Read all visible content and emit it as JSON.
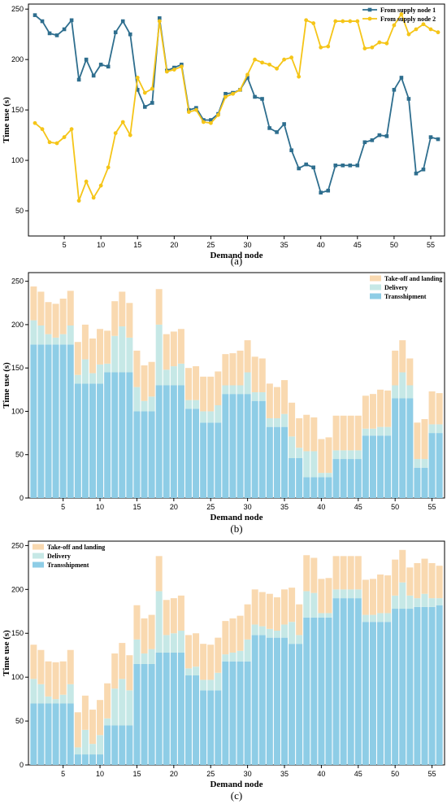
{
  "colors": {
    "series1": "#2e6e8e",
    "series2": "#f5c518",
    "transshipment": "#8ecde6",
    "delivery": "#c6e8e6",
    "takeoff": "#f9d9b0"
  },
  "chart_data": [
    {
      "type": "line",
      "caption": "(a)",
      "xlabel": "Demand node",
      "ylabel": "Time use (s)",
      "xlim": [
        1,
        56
      ],
      "ylim": [
        25,
        255
      ],
      "xticks": [
        5,
        10,
        15,
        20,
        25,
        30,
        35,
        40,
        45,
        50,
        55
      ],
      "yticks": [
        50,
        100,
        150,
        200,
        250
      ],
      "legend_position": "top-right",
      "x": [
        1,
        2,
        3,
        4,
        5,
        6,
        7,
        8,
        9,
        10,
        11,
        12,
        13,
        14,
        15,
        16,
        17,
        18,
        19,
        20,
        21,
        22,
        23,
        24,
        25,
        26,
        27,
        28,
        29,
        30,
        31,
        32,
        33,
        34,
        35,
        36,
        37,
        38,
        39,
        40,
        41,
        42,
        43,
        44,
        45,
        46,
        47,
        48,
        49,
        50,
        51,
        52,
        53,
        54,
        55,
        56
      ],
      "series": [
        {
          "name": "From supply node 1",
          "marker": "square",
          "values": [
            244,
            238,
            226,
            224,
            230,
            239,
            180,
            200,
            184,
            195,
            193,
            227,
            238,
            225,
            170,
            153,
            157,
            241,
            189,
            192,
            195,
            150,
            152,
            140,
            140,
            146,
            166,
            167,
            170,
            182,
            163,
            161,
            132,
            128,
            136,
            110,
            92,
            96,
            93,
            68,
            70,
            95,
            95,
            95,
            95,
            118,
            120,
            125,
            124,
            170,
            182,
            161,
            87,
            91,
            123,
            121
          ]
        },
        {
          "name": "From supply node 2",
          "marker": "circle",
          "values": [
            137,
            131,
            118,
            117,
            123,
            131,
            60,
            79,
            63,
            75,
            93,
            127,
            138,
            125,
            182,
            167,
            171,
            238,
            188,
            190,
            193,
            148,
            150,
            138,
            137,
            145,
            163,
            166,
            170,
            185,
            200,
            197,
            195,
            191,
            200,
            202,
            183,
            239,
            236,
            212,
            213,
            238,
            238,
            238,
            238,
            211,
            212,
            217,
            216,
            234,
            245,
            225,
            230,
            235,
            230,
            227
          ]
        }
      ]
    },
    {
      "type": "bar",
      "stacked": true,
      "caption": "(b)",
      "xlabel": "Demand node",
      "ylabel": "Time use (s)",
      "ylim": [
        0,
        260
      ],
      "xticks": [
        5,
        10,
        15,
        20,
        25,
        30,
        35,
        40,
        45,
        50,
        55
      ],
      "yticks": [
        0,
        50,
        100,
        150,
        200,
        250
      ],
      "legend_position": "top-right",
      "categories": [
        1,
        2,
        3,
        4,
        5,
        6,
        7,
        8,
        9,
        10,
        11,
        12,
        13,
        14,
        15,
        16,
        17,
        18,
        19,
        20,
        21,
        22,
        23,
        24,
        25,
        26,
        27,
        28,
        29,
        30,
        31,
        32,
        33,
        34,
        35,
        36,
        37,
        38,
        39,
        40,
        41,
        42,
        43,
        44,
        45,
        46,
        47,
        48,
        49,
        50,
        51,
        52,
        53,
        54,
        55,
        56
      ],
      "series": [
        {
          "name": "Transshipment",
          "values": [
            177,
            177,
            177,
            177,
            177,
            177,
            132,
            132,
            132,
            132,
            145,
            145,
            145,
            145,
            100,
            100,
            100,
            130,
            130,
            130,
            130,
            103,
            103,
            87,
            87,
            87,
            120,
            120,
            120,
            120,
            112,
            112,
            82,
            82,
            82,
            46,
            46,
            24,
            24,
            24,
            24,
            45,
            45,
            45,
            45,
            72,
            72,
            72,
            72,
            115,
            115,
            115,
            35,
            35,
            75,
            75
          ]
        },
        {
          "name": "Delivery",
          "values": [
            28,
            22,
            12,
            8,
            12,
            22,
            10,
            28,
            12,
            22,
            10,
            42,
            53,
            40,
            28,
            12,
            17,
            70,
            18,
            22,
            25,
            10,
            10,
            13,
            13,
            20,
            10,
            10,
            10,
            25,
            10,
            10,
            10,
            10,
            15,
            25,
            12,
            30,
            30,
            5,
            5,
            10,
            10,
            10,
            10,
            8,
            8,
            10,
            10,
            15,
            30,
            15,
            10,
            10,
            10,
            10
          ]
        },
        {
          "name": "Take-off and landing",
          "values": [
            39,
            39,
            37,
            39,
            41,
            40,
            38,
            40,
            40,
            41,
            38,
            40,
            40,
            40,
            42,
            41,
            40,
            41,
            41,
            40,
            40,
            37,
            39,
            40,
            40,
            39,
            36,
            37,
            40,
            37,
            41,
            39,
            40,
            36,
            39,
            39,
            34,
            42,
            39,
            39,
            41,
            40,
            40,
            40,
            40,
            38,
            40,
            43,
            42,
            40,
            37,
            31,
            42,
            46,
            38,
            36
          ]
        }
      ]
    },
    {
      "type": "bar",
      "stacked": true,
      "caption": "(c)",
      "xlabel": "Demand node",
      "ylabel": "Time use (s)",
      "ylim": [
        0,
        255
      ],
      "xticks": [
        5,
        10,
        15,
        20,
        25,
        30,
        35,
        40,
        45,
        50,
        55
      ],
      "yticks": [
        0,
        50,
        100,
        150,
        200,
        250
      ],
      "legend_position": "top-left",
      "categories": [
        1,
        2,
        3,
        4,
        5,
        6,
        7,
        8,
        9,
        10,
        11,
        12,
        13,
        14,
        15,
        16,
        17,
        18,
        19,
        20,
        21,
        22,
        23,
        24,
        25,
        26,
        27,
        28,
        29,
        30,
        31,
        32,
        33,
        34,
        35,
        36,
        37,
        38,
        39,
        40,
        41,
        42,
        43,
        44,
        45,
        46,
        47,
        48,
        49,
        50,
        51,
        52,
        53,
        54,
        55,
        56
      ],
      "series": [
        {
          "name": "Transshipment",
          "values": [
            70,
            70,
            70,
            70,
            70,
            70,
            12,
            12,
            12,
            12,
            45,
            45,
            45,
            45,
            115,
            115,
            115,
            128,
            128,
            128,
            128,
            102,
            102,
            85,
            85,
            85,
            118,
            118,
            118,
            118,
            148,
            148,
            145,
            145,
            145,
            138,
            138,
            168,
            168,
            168,
            168,
            190,
            190,
            190,
            190,
            163,
            163,
            163,
            163,
            178,
            178,
            178,
            180,
            180,
            180,
            182
          ]
        },
        {
          "name": "Delivery",
          "values": [
            28,
            22,
            8,
            5,
            10,
            22,
            8,
            28,
            12,
            22,
            8,
            42,
            53,
            40,
            28,
            12,
            17,
            70,
            20,
            22,
            25,
            8,
            10,
            12,
            12,
            20,
            8,
            10,
            12,
            25,
            12,
            10,
            10,
            8,
            15,
            25,
            10,
            30,
            28,
            5,
            5,
            10,
            10,
            10,
            10,
            8,
            8,
            10,
            10,
            15,
            30,
            15,
            10,
            15,
            10,
            8
          ]
        },
        {
          "name": "Take-off and landing",
          "values": [
            39,
            39,
            40,
            42,
            38,
            39,
            40,
            39,
            39,
            40,
            40,
            40,
            41,
            40,
            39,
            40,
            39,
            40,
            40,
            40,
            40,
            38,
            38,
            41,
            40,
            40,
            38,
            39,
            40,
            40,
            40,
            39,
            40,
            38,
            40,
            39,
            35,
            41,
            40,
            39,
            40,
            38,
            38,
            38,
            38,
            40,
            41,
            44,
            43,
            41,
            37,
            32,
            40,
            40,
            40,
            37
          ]
        }
      ]
    }
  ]
}
